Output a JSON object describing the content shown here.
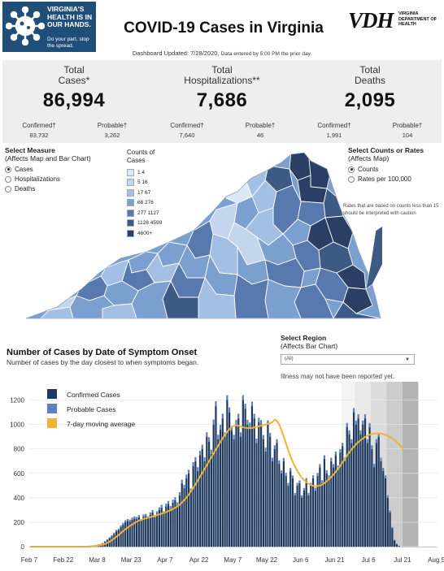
{
  "header": {
    "badge_title": "VIRGINIA'S HEALTH IS IN OUR HANDS.",
    "badge_sub": "Do your part, stop the spread.",
    "title": "COVID-19 Cases in Virginia",
    "vdh_mark": "VDH",
    "vdh_sub": "VIRGINIA DEPARTMENT OF HEALTH"
  },
  "updated": {
    "label": "Dashboard Updated: 7/28/2020,",
    "note": "Data entered by 5:00 PM the prior day."
  },
  "stats": {
    "cases": {
      "label1": "Total",
      "label2": "Cases*",
      "value": "86,994",
      "confirmed_label": "Confirmed†",
      "confirmed_value": "83,732",
      "probable_label": "Probable†",
      "probable_value": "3,262"
    },
    "hosp": {
      "label1": "Total",
      "label2": "Hospitalizations**",
      "value": "7,686",
      "confirmed_label": "Confirmed†",
      "confirmed_value": "7,640",
      "probable_label": "Probable†",
      "probable_value": "46"
    },
    "deaths": {
      "label1": "Total",
      "label2": "Deaths",
      "value": "2,095",
      "confirmed_label": "Confirmed†",
      "confirmed_value": "1,991",
      "probable_label": "Probable†",
      "probable_value": "104"
    }
  },
  "measure": {
    "title": "Select Measure",
    "subtitle": "(Affects Map and Bar Chart)",
    "options": [
      "Cases",
      "Hospitalizations",
      "Deaths"
    ],
    "selected": 0
  },
  "map_legend": {
    "title1": "Counts of",
    "title2": "Cases",
    "bins": [
      {
        "label": "1   4",
        "color": "#dce8f5"
      },
      {
        "label": "5   16",
        "color": "#c3d6ee"
      },
      {
        "label": "17   67",
        "color": "#a3c0e4"
      },
      {
        "label": "68   276",
        "color": "#7b9fcf"
      },
      {
        "label": "277   1127",
        "color": "#5779ad"
      },
      {
        "label": "1128   4599",
        "color": "#3d5a85"
      },
      {
        "label": "4600+",
        "color": "#2a3f63"
      }
    ]
  },
  "rates": {
    "title": "Select Counts or Rates",
    "subtitle": "(Affects Map)",
    "options": [
      "Counts",
      "Rates per 100,000"
    ],
    "selected": 0,
    "note": "Rates that are based on counts less than 15 should be interpreted with caution"
  },
  "chart_head": {
    "title": "Number of Cases by Date of Symptom Onset",
    "subtitle": "Number of cases by the day closest to when symptoms began."
  },
  "region": {
    "title": "Select Region",
    "subtitle": "(Affects Bar Chart)",
    "value": "(All)",
    "illness_note": "Illness may not have been reported yet."
  },
  "chart_data": {
    "type": "bar",
    "start_date": "2020-02-07",
    "end_date": "2020-07-27",
    "xtick_labels": [
      "Feb 7",
      "Feb 22",
      "Mar 8",
      "Mar 23",
      "Apr 7",
      "Apr 22",
      "May 7",
      "May 22",
      "Jun 6",
      "Jun 21",
      "Jul 6",
      "Jul 21",
      "Aug 5"
    ],
    "ytick_labels": [
      0,
      200,
      400,
      600,
      800,
      1000,
      1200
    ],
    "ylim": [
      0,
      1350
    ],
    "legend": [
      {
        "name": "Confirmed Cases",
        "color": "#1f3a5f"
      },
      {
        "name": "Probable Cases",
        "color": "#5b7fc0"
      },
      {
        "name": "7-day moving average",
        "color": "#f2b233"
      }
    ],
    "shaded_periods": [
      {
        "start": "2020-06-24",
        "end": "2020-06-30",
        "color": "#f4f4f4"
      },
      {
        "start": "2020-06-30",
        "end": "2020-07-07",
        "color": "#e9e9e9"
      },
      {
        "start": "2020-07-07",
        "end": "2020-07-14",
        "color": "#dcdcdc"
      },
      {
        "start": "2020-07-14",
        "end": "2020-07-21",
        "color": "#cccccc"
      },
      {
        "start": "2020-07-21",
        "end": "2020-07-28",
        "color": "#b3b3b3"
      }
    ],
    "series": [
      {
        "name": "Confirmed Cases",
        "values": [
          0,
          0,
          1,
          0,
          0,
          0,
          1,
          0,
          0,
          1,
          0,
          0,
          0,
          0,
          1,
          0,
          0,
          1,
          0,
          0,
          0,
          0,
          1,
          0,
          1,
          2,
          4,
          6,
          8,
          12,
          16,
          20,
          28,
          40,
          55,
          70,
          85,
          105,
          125,
          135,
          160,
          180,
          200,
          210,
          205,
          220,
          230,
          225,
          240,
          210,
          245,
          250,
          230,
          260,
          280,
          240,
          270,
          300,
          320,
          270,
          330,
          350,
          310,
          360,
          380,
          340,
          420,
          520,
          480,
          560,
          600,
          450,
          660,
          700,
          620,
          750,
          800,
          700,
          900,
          860,
          760,
          1000,
          1150,
          880,
          960,
          1050,
          900,
          1200,
          1100,
          950,
          880,
          1000,
          1050,
          900,
          1200,
          1130,
          1000,
          980,
          1150,
          1050,
          850,
          1020,
          1000,
          880,
          780,
          1000,
          900,
          700,
          800,
          850,
          680,
          600,
          700,
          580,
          500,
          620,
          560,
          420,
          500,
          520,
          400,
          460,
          540,
          420,
          500,
          560,
          460,
          580,
          650,
          520,
          720,
          600,
          560,
          700,
          650,
          750,
          640,
          770,
          820,
          700,
          980,
          920,
          850,
          1100,
          1000,
          1050,
          920,
          1000,
          1050,
          850,
          980,
          800,
          650,
          850,
          900,
          700,
          620,
          560,
          400,
          280,
          150,
          50,
          20,
          5
        ]
      },
      {
        "name": "Probable Cases",
        "values": [
          0,
          0,
          0,
          0,
          0,
          0,
          0,
          0,
          0,
          0,
          0,
          0,
          0,
          0,
          0,
          0,
          0,
          0,
          0,
          0,
          0,
          0,
          0,
          0,
          0,
          0,
          0,
          0,
          1,
          1,
          2,
          2,
          3,
          4,
          5,
          6,
          8,
          10,
          12,
          12,
          14,
          15,
          16,
          16,
          16,
          18,
          18,
          18,
          18,
          16,
          18,
          18,
          18,
          20,
          20,
          18,
          20,
          22,
          22,
          20,
          22,
          24,
          22,
          24,
          25,
          22,
          26,
          28,
          26,
          30,
          30,
          26,
          32,
          32,
          30,
          34,
          35,
          32,
          36,
          36,
          34,
          40,
          40,
          36,
          38,
          38,
          36,
          40,
          40,
          38,
          36,
          38,
          38,
          36,
          40,
          40,
          38,
          36,
          38,
          38,
          34,
          36,
          36,
          34,
          32,
          34,
          32,
          28,
          30,
          30,
          26,
          24,
          26,
          24,
          22,
          24,
          22,
          20,
          22,
          22,
          20,
          20,
          22,
          20,
          22,
          24,
          22,
          24,
          26,
          24,
          28,
          26,
          24,
          28,
          26,
          28,
          26,
          28,
          30,
          28,
          32,
          32,
          30,
          34,
          32,
          34,
          32,
          32,
          34,
          30,
          32,
          30,
          28,
          30,
          30,
          28,
          26,
          24,
          20,
          16,
          10,
          6,
          4,
          2
        ]
      },
      {
        "name": "7-day moving average",
        "values": [
          0,
          0,
          0,
          0,
          0,
          0,
          0,
          0,
          0,
          0,
          0,
          0,
          0,
          0,
          0,
          0,
          0,
          0,
          0,
          0,
          0,
          0,
          0,
          0,
          0,
          1,
          2,
          3,
          5,
          7,
          10,
          13,
          17,
          23,
          31,
          41,
          53,
          66,
          80,
          95,
          111,
          127,
          142,
          156,
          169,
          181,
          193,
          204,
          213,
          220,
          226,
          232,
          237,
          242,
          247,
          252,
          258,
          264,
          270,
          276,
          283,
          291,
          299,
          308,
          318,
          330,
          344,
          361,
          380,
          402,
          426,
          453,
          481,
          511,
          542,
          573,
          604,
          635,
          667,
          699,
          731,
          763,
          795,
          826,
          857,
          887,
          915,
          941,
          963,
          980,
          990,
          993,
          990,
          984,
          978,
          973,
          970,
          970,
          972,
          976,
          980,
          985,
          990,
          995,
          1000,
          1005,
          1010,
          1020,
          1040,
          1030,
          1000,
          955,
          900,
          845,
          790,
          740,
          695,
          655,
          620,
          590,
          565,
          545,
          528,
          515,
          505,
          498,
          495,
          496,
          500,
          508,
          520,
          535,
          552,
          570,
          590,
          612,
          636,
          662,
          690,
          718,
          746,
          772,
          796,
          818,
          838,
          856,
          872,
          886,
          898,
          908,
          916,
          922,
          926,
          928,
          928,
          926,
          922,
          916,
          908,
          898,
          886,
          872,
          856,
          838,
          818,
          796
        ]
      }
    ]
  }
}
